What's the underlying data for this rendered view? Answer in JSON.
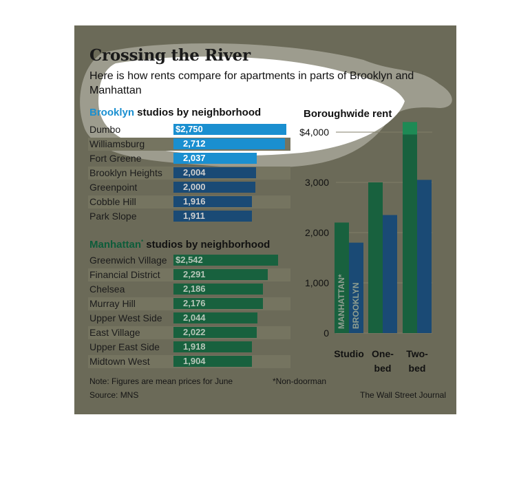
{
  "title": "Crossing the River",
  "subtitle": "Here is how rents compare for apartments in parts of Brooklyn and Manhattan",
  "brooklyn_heading": {
    "highlight": "Brooklyn",
    "rest": " studios by neighborhood"
  },
  "manhattan_heading": {
    "highlight": "Manhattan",
    "mark": "*",
    "rest": " studios by neighborhood"
  },
  "borough_heading": "Boroughwide rent",
  "note": "Note: Figures are mean prices for June",
  "non_doorman": "*Non-doorman",
  "source": "Source: MNS",
  "credit": "The Wall Street Journal",
  "colors": {
    "brooklyn_top": "#1a8fd0",
    "brooklyn": "#1a4a75",
    "manhattan": "#18613e",
    "card": "#6b6a58",
    "stripe": "#757460"
  },
  "chart_data": [
    {
      "type": "bar",
      "orientation": "horizontal",
      "title": "Brooklyn studios by neighborhood",
      "categories": [
        "Dumbo",
        "Williamsburg",
        "Fort Greene",
        "Brooklyn Heights",
        "Greenpoint",
        "Cobble Hill",
        "Park Slope"
      ],
      "values": [
        2750,
        2712,
        2037,
        2004,
        2000,
        1916,
        1911
      ],
      "labels": [
        "$2,750",
        "2,712",
        "2,037",
        "2,004",
        "2,000",
        "1,916",
        "1,911"
      ]
    },
    {
      "type": "bar",
      "orientation": "horizontal",
      "title": "Manhattan* studios by neighborhood",
      "categories": [
        "Greenwich Village",
        "Financial District",
        "Chelsea",
        "Murray Hill",
        "Upper West Side",
        "East Village",
        "Upper East Side",
        "Midtown West"
      ],
      "values": [
        2542,
        2291,
        2186,
        2176,
        2044,
        2022,
        1918,
        1904
      ],
      "labels": [
        "$2,542",
        "2,291",
        "2,186",
        "2,176",
        "2,044",
        "2,022",
        "1,918",
        "1,904"
      ]
    },
    {
      "type": "bar",
      "title": "Boroughwide rent",
      "categories": [
        "Studio",
        "One-\nbed",
        "Two-\nbed"
      ],
      "series": [
        {
          "name": "MANHATTAN*",
          "values": [
            2200,
            3000,
            4200
          ]
        },
        {
          "name": "BROOKLYN",
          "values": [
            1800,
            2350,
            3050
          ]
        }
      ],
      "ylim": [
        0,
        4000
      ],
      "yticks": [
        "0",
        "1,000",
        "2,000",
        "3,000",
        "$4,000"
      ],
      "grid": true
    }
  ]
}
